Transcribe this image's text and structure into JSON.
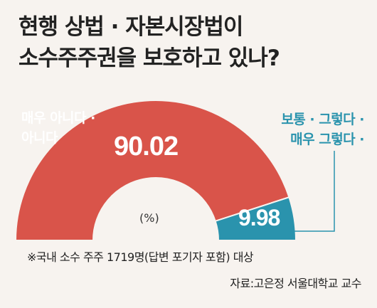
{
  "title_line1": "현행 상법 · 자본시장법이",
  "title_line2": "소수주주권을 보호하고 있나?",
  "label_left_line1": "매우 아니다 ·",
  "label_left_line2": "아니다",
  "label_right_line1": "보통 · 그렇다 ·",
  "label_right_line2": "매우 그렇다 ·",
  "value_left_text": "90.02",
  "value_right_text": "9.98",
  "unit_text": "(%)",
  "note": "※국내 소수 주주 1719명(답변 포기자 포함) 대상",
  "source": "자료:고은정 서울대학교 교수",
  "colors": {
    "negative": "#d9544a",
    "positive": "#2a93ad",
    "background": "#f7f3ef",
    "leader_line": "#2a93ad"
  },
  "chart_data": {
    "type": "pie",
    "variant": "semicircle-donut",
    "title": "현행 상법 · 자본시장법이 소수주주권을 보호하고 있나?",
    "unit": "(%)",
    "slices": [
      {
        "label": "매우 아니다 · 아니다",
        "value": 90.02,
        "color": "#d9544a"
      },
      {
        "label": "보통 · 그렇다 · 매우 그렇다 ·",
        "value": 9.98,
        "color": "#2a93ad"
      }
    ]
  }
}
